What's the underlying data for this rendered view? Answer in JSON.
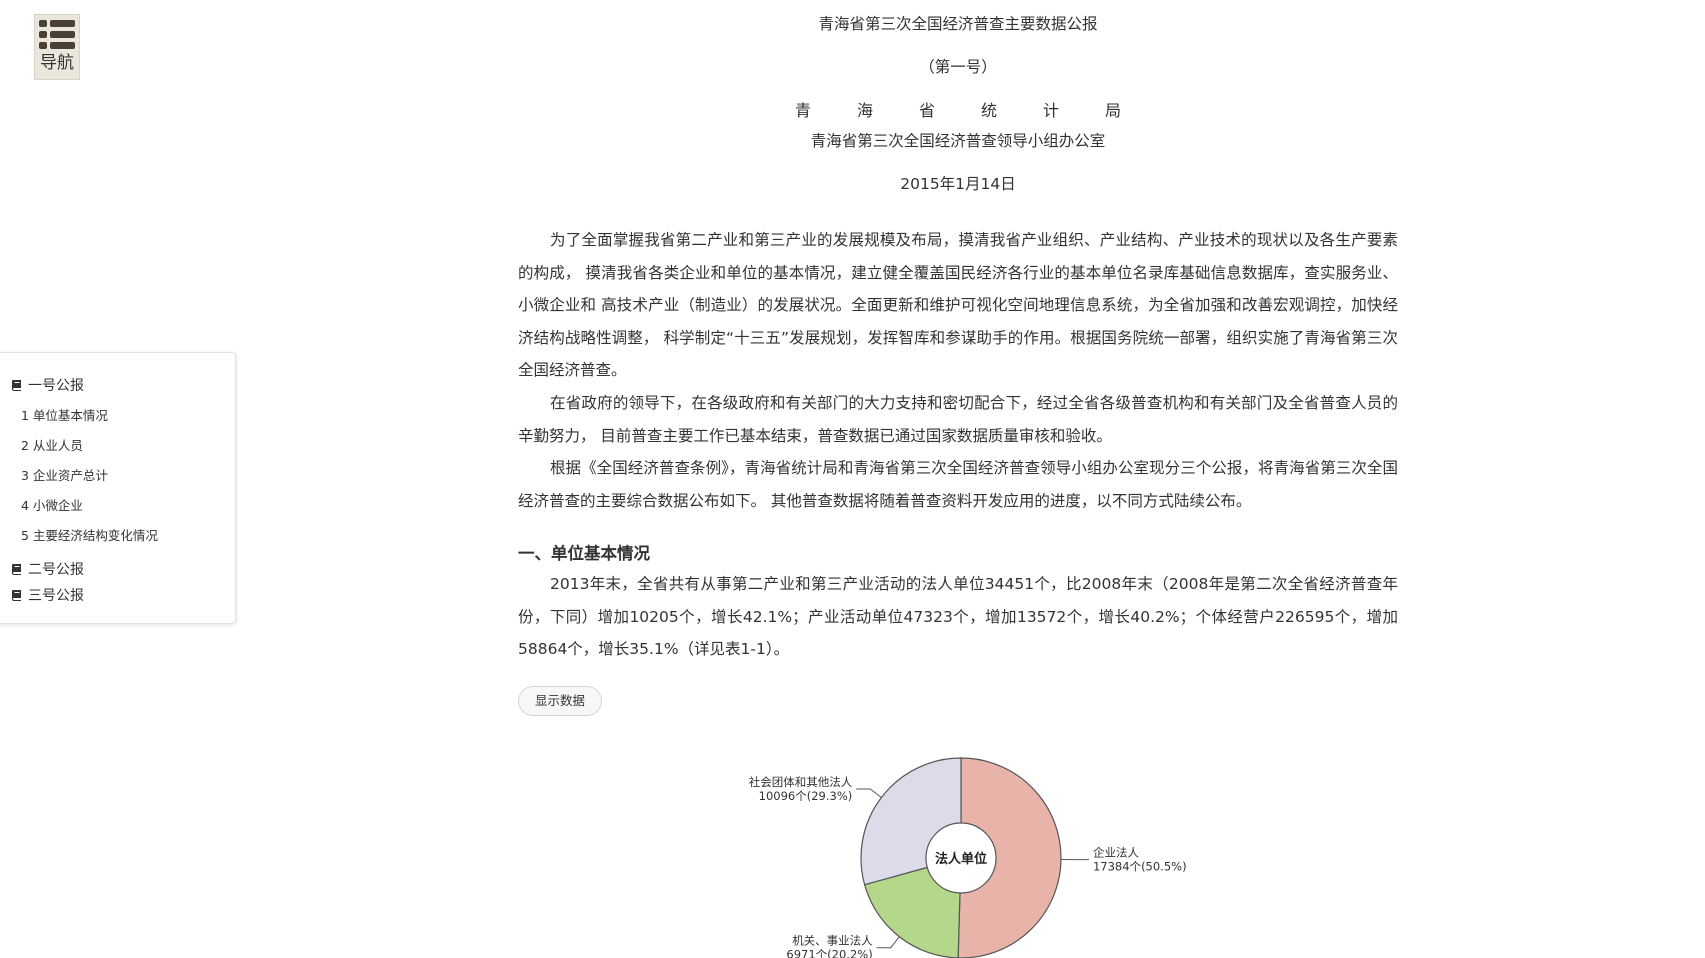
{
  "nav": {
    "label": "导航",
    "icon": "list-icon"
  },
  "toc": {
    "items": [
      {
        "label": "一号公报",
        "icon": "book-icon"
      },
      {
        "label": "二号公报",
        "icon": "book-icon"
      },
      {
        "label": "三号公报",
        "icon": "book-icon"
      }
    ],
    "sub_items": [
      {
        "label": "1  单位基本情况"
      },
      {
        "label": "2  从业人员"
      },
      {
        "label": "3  企业资产总计"
      },
      {
        "label": "4  小微企业"
      },
      {
        "label": "5  主要经济结构变化情况"
      }
    ]
  },
  "header": {
    "title": "青海省第三次全国经济普查主要数据公报",
    "number": "（第一号）",
    "issuer_chars": [
      "青",
      "海",
      "省",
      "统",
      "计",
      "局"
    ],
    "issuer2": "青海省第三次全国经济普查领导小组办公室",
    "date": "2015年1月14日"
  },
  "body": {
    "p1": "为了全面掌握我省第二产业和第三产业的发展规模及布局，摸清我省产业组织、产业结构、产业技术的现状以及各生产要素的构成， 摸清我省各类企业和单位的基本情况，建立健全覆盖国民经济各行业的基本单位名录库基础信息数据库，查实服务业、小微企业和 高技术产业（制造业）的发展状况。全面更新和维护可视化空间地理信息系统，为全省加强和改善宏观调控，加快经济结构战略性调整， 科学制定“十三五”发展规划，发挥智库和参谋助手的作用。根据国务院统一部署，组织实施了青海省第三次全国经济普查。",
    "p2": "在省政府的领导下，在各级政府和有关部门的大力支持和密切配合下，经过全省各级普查机构和有关部门及全省普查人员的辛勤努力， 目前普查主要工作已基本结束，普查数据已通过国家数据质量审核和验收。",
    "p3": "根据《全国经济普查条例》，青海省统计局和青海省第三次全国经济普查领导小组办公室现分三个公报，将青海省第三次全国经济普查的主要综合数据公布如下。 其他普查数据将随着普查资料开发应用的进度，以不同方式陆续公布。",
    "section1_title": "一、单位基本情况",
    "p4": "2013年末，全省共有从事第二产业和第三产业活动的法人单位34451个，比2008年末（2008年是第二次全省经济普查年份，下同）增加10205个，增长42.1%；产业活动单位47323个，增加13572个，增长40.2%；个体经营户226595个，增加 58864个，增长35.1%（详见表1-1）。",
    "show_data_button": "显示数据"
  },
  "chart_data": {
    "type": "pie",
    "center_label": "法人单位",
    "slices": [
      {
        "name": "企业法人",
        "value": 17384,
        "label": "17384个(50.5%)",
        "color": "#e8b4aa"
      },
      {
        "name": "机关、事业法人",
        "value": 6971,
        "label": "6971个(20.2%)",
        "color": "#b5d78b"
      },
      {
        "name": "社会团体和其他法人",
        "value": 10096,
        "label": "10096个(29.3%)",
        "color": "#dcdbea"
      }
    ]
  }
}
